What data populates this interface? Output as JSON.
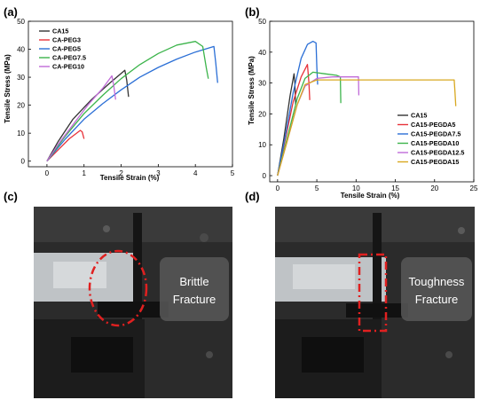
{
  "panels": {
    "a": "(a)",
    "b": "(b)",
    "c": "(c)",
    "d": "(d)"
  },
  "photos": {
    "c": {
      "line1": "Brittle",
      "line2": "Fracture"
    },
    "d": {
      "line1": "Toughness",
      "line2": "Fracture"
    }
  },
  "colors": {
    "black": "#333333",
    "red": "#e8323a",
    "blue": "#2b6fd6",
    "green": "#3cb44b",
    "violet": "#c06ad8",
    "gold": "#d8a820",
    "highlight": "#e02020"
  },
  "chart_data": [
    {
      "type": "line",
      "id": "a",
      "xlabel": "Tensile Strain  (%)",
      "ylabel": "Tensile Stress (MPa)",
      "xlim": [
        -0.5,
        5
      ],
      "ylim": [
        -2,
        50
      ],
      "xticks": [
        0,
        1,
        2,
        3,
        4,
        5
      ],
      "yticks": [
        0,
        10,
        20,
        30,
        40,
        50
      ],
      "legend_position": "top-left",
      "series": [
        {
          "name": "CA15",
          "color": "#333333",
          "x": [
            0,
            0.3,
            0.7,
            1.2,
            1.7,
            2.1,
            2.15,
            2.2
          ],
          "y": [
            0,
            7,
            15,
            22,
            28,
            32.5,
            29,
            23
          ]
        },
        {
          "name": "CA-PEG3",
          "color": "#e8323a",
          "x": [
            0,
            0.3,
            0.6,
            0.9,
            0.95,
            1.0
          ],
          "y": [
            0,
            4,
            8,
            11,
            10.5,
            8
          ]
        },
        {
          "name": "CA-PEG5",
          "color": "#2b6fd6",
          "x": [
            0,
            0.5,
            1.0,
            1.5,
            2.0,
            2.5,
            3.0,
            3.5,
            4.0,
            4.5,
            4.55,
            4.6
          ],
          "y": [
            0,
            8,
            15,
            20.5,
            25.5,
            30,
            33.5,
            36.5,
            39,
            41,
            35,
            28
          ]
        },
        {
          "name": "CA-PEG7.5",
          "color": "#3cb44b",
          "x": [
            0,
            0.5,
            1.0,
            1.5,
            2.0,
            2.5,
            3.0,
            3.5,
            4.0,
            4.2,
            4.3,
            4.35
          ],
          "y": [
            0,
            9,
            17,
            23.5,
            29.5,
            34.5,
            38.5,
            41.5,
            42.8,
            41,
            33,
            29.5
          ]
        },
        {
          "name": "CA-PEG10",
          "color": "#c06ad8",
          "x": [
            0,
            0.3,
            0.7,
            1.1,
            1.5,
            1.75,
            1.8,
            1.85
          ],
          "y": [
            0,
            6,
            13,
            20,
            26,
            30.5,
            27,
            22
          ]
        }
      ]
    },
    {
      "type": "line",
      "id": "b",
      "xlabel": "Tensile Strain  (%)",
      "ylabel": "Tensile Stress (MPa)",
      "xlim": [
        -1,
        25
      ],
      "ylim": [
        -2,
        50
      ],
      "xticks": [
        0,
        5,
        10,
        15,
        20,
        25
      ],
      "yticks": [
        0,
        10,
        20,
        30,
        40,
        50
      ],
      "legend_position": "bottom-right",
      "series": [
        {
          "name": "CA15",
          "color": "#333333",
          "x": [
            0,
            0.8,
            1.6,
            2.1,
            2.2,
            2.3
          ],
          "y": [
            0,
            12,
            26,
            33,
            30,
            23
          ]
        },
        {
          "name": "CA15-PEGDA5",
          "color": "#e8323a",
          "x": [
            0,
            1.0,
            2.0,
            3.0,
            3.8,
            4.0,
            4.1
          ],
          "y": [
            0,
            12,
            24,
            32,
            36,
            30,
            24.5
          ]
        },
        {
          "name": "CA15-PEGDA7.5",
          "color": "#2b6fd6",
          "x": [
            0,
            1.0,
            2.0,
            3.0,
            3.8,
            4.5,
            4.9,
            5.0,
            5.1
          ],
          "y": [
            0,
            13,
            27,
            38,
            42.5,
            43.5,
            43,
            35,
            29.5
          ]
        },
        {
          "name": "CA15-PEGDA10",
          "color": "#3cb44b",
          "x": [
            0,
            1.2,
            2.5,
            3.5,
            4.5,
            6.0,
            7.5,
            8.0,
            8.05
          ],
          "y": [
            0,
            12,
            25,
            31.5,
            33.5,
            33,
            32.5,
            32,
            23.5
          ]
        },
        {
          "name": "CA15-PEGDA12.5",
          "color": "#c06ad8",
          "x": [
            0,
            1.2,
            2.5,
            3.5,
            5.0,
            7.0,
            9.0,
            10.3,
            10.35
          ],
          "y": [
            0,
            11,
            23,
            29,
            31.5,
            32,
            32,
            32,
            26
          ]
        },
        {
          "name": "CA15-PEGDA15",
          "color": "#d8a820",
          "x": [
            0,
            1.2,
            2.5,
            3.5,
            5.0,
            8.0,
            12.0,
            16.0,
            20.0,
            22.5,
            22.6,
            22.7
          ],
          "y": [
            0,
            11,
            23,
            29.5,
            31,
            31,
            31,
            31,
            31,
            31,
            27,
            22.5
          ]
        }
      ]
    }
  ]
}
